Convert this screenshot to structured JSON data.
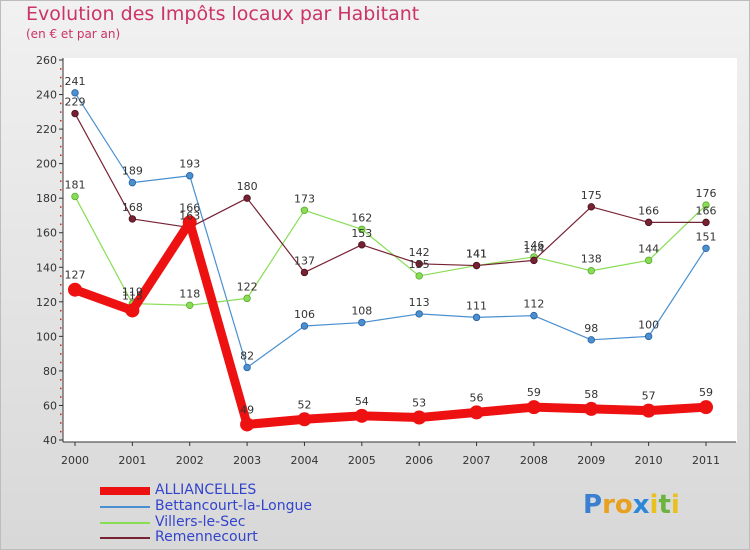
{
  "header": {
    "title": "Evolution des Impôts locaux par Habitant",
    "subtitle": "(en € et par an)"
  },
  "logo": {
    "text": "Proxiti",
    "letters": [
      {
        "ch": "P",
        "color": "#3a7fd0"
      },
      {
        "ch": "r",
        "color": "#e8a020"
      },
      {
        "ch": "o",
        "color": "#e8a020"
      },
      {
        "ch": "x",
        "color": "#2b88d8"
      },
      {
        "ch": "i",
        "color": "#e8c020"
      },
      {
        "ch": "t",
        "color": "#6db33f"
      },
      {
        "ch": "i",
        "color": "#e8c020"
      }
    ]
  },
  "chart_data": {
    "type": "line",
    "title": "Evolution des Impôts locaux par Habitant",
    "subtitle": "(en € et par an)",
    "xlabel": "",
    "ylabel": "",
    "ylim": [
      40,
      260
    ],
    "yticks": [
      40,
      60,
      80,
      100,
      120,
      140,
      160,
      180,
      200,
      220,
      240,
      260
    ],
    "grid": false,
    "legend_position": "bottom-left",
    "categories": [
      "2000",
      "2001",
      "2002",
      "2003",
      "2004",
      "2005",
      "2006",
      "2007",
      "2008",
      "2009",
      "2010",
      "2011"
    ],
    "series": [
      {
        "name": "Bettancourt-la-Longue",
        "color": "#4a90d0",
        "values": [
          241,
          189,
          193,
          82,
          106,
          108,
          113,
          111,
          112,
          98,
          100,
          151
        ],
        "labels": [
          "241",
          "189",
          "193",
          "82",
          "106",
          "108",
          "113",
          "111",
          "112",
          "98",
          "100",
          "151"
        ]
      },
      {
        "name": "Villers-le-Sec",
        "color": "#88dd55",
        "values": [
          181,
          119,
          118,
          122,
          173,
          162,
          135,
          141,
          146,
          138,
          144,
          176
        ],
        "labels": [
          "181",
          "119",
          "118",
          "122",
          "173",
          "162",
          "135",
          "141",
          "146",
          "138",
          "144",
          "176"
        ]
      },
      {
        "name": "Remennecourt",
        "color": "#772233",
        "values": [
          229,
          168,
          163,
          180,
          137,
          153,
          142,
          141,
          144,
          175,
          166,
          166
        ],
        "labels": [
          "229",
          "168",
          "163",
          "180",
          "137",
          "153",
          "142",
          "141",
          "144",
          "175",
          "166",
          "166"
        ]
      },
      {
        "name": "ALLIANCELLES",
        "color": "#ee1111",
        "values": [
          127,
          115,
          166,
          49,
          52,
          54,
          53,
          56,
          59,
          58,
          57,
          59
        ],
        "labels": [
          "127",
          "115",
          "166",
          "49",
          "52",
          "54",
          "53",
          "56",
          "59",
          "58",
          "57",
          "59"
        ]
      }
    ],
    "legend": [
      "ALLIANCELLES",
      "Bettancourt-la-Longue",
      "Villers-le-Sec",
      "Remennecourt"
    ]
  }
}
